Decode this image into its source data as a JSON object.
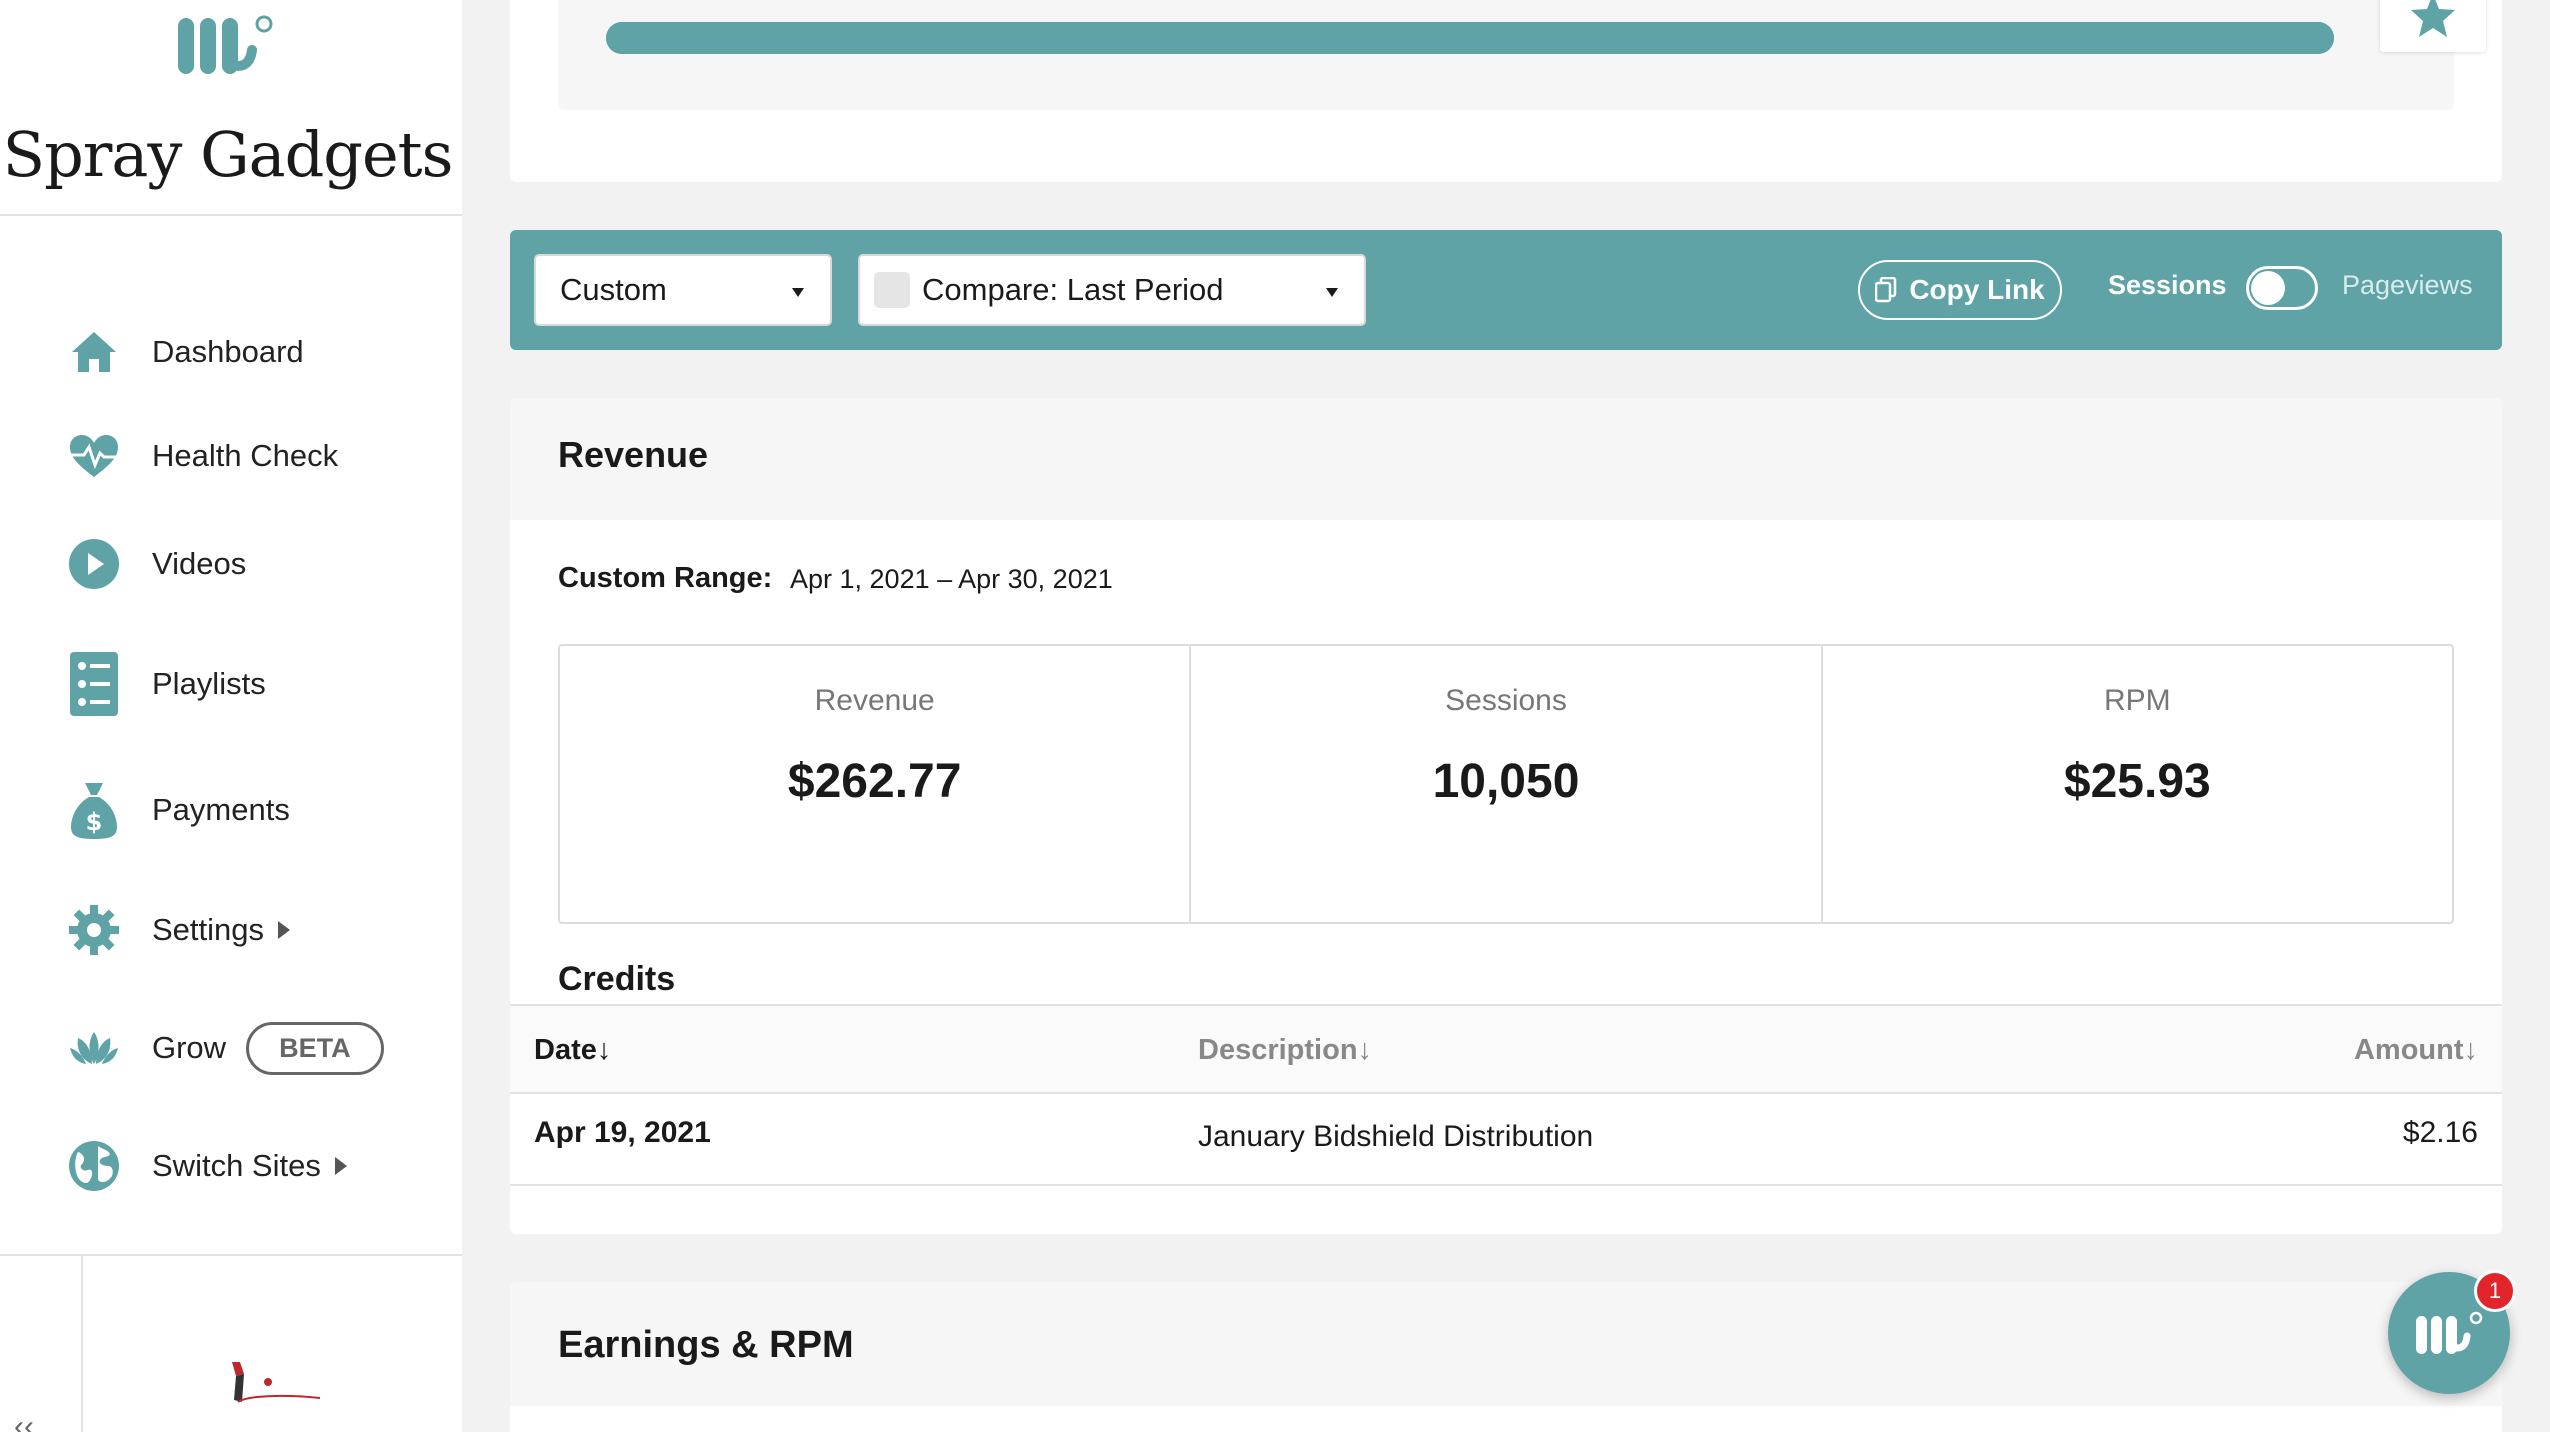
{
  "brand": {
    "site_name": "Spray Gadgets",
    "accent": "#5fa3a7"
  },
  "sidebar": {
    "items": [
      {
        "label": "Dashboard",
        "icon": "home-icon"
      },
      {
        "label": "Health Check",
        "icon": "heartbeat-icon"
      },
      {
        "label": "Videos",
        "icon": "play-circle-icon"
      },
      {
        "label": "Playlists",
        "icon": "list-icon"
      },
      {
        "label": "Payments",
        "icon": "money-bag-icon"
      },
      {
        "label": "Settings",
        "icon": "gear-icon",
        "has_submenu": true
      },
      {
        "label": "Grow",
        "icon": "lotus-icon",
        "badge": "BETA"
      },
      {
        "label": "Switch Sites",
        "icon": "globe-icon",
        "has_submenu": true
      }
    ]
  },
  "progress": {
    "fraction": 1.0
  },
  "filters": {
    "date_range": "Custom",
    "compare": "Compare: Last Period",
    "copy_link": "Copy Link",
    "toggle_left": "Sessions",
    "toggle_right": "Pageviews"
  },
  "revenue": {
    "title": "Revenue",
    "range_label": "Custom Range:",
    "range_value": "Apr 1, 2021 – Apr 30, 2021",
    "stats": [
      {
        "label": "Revenue",
        "value": "$262.77"
      },
      {
        "label": "Sessions",
        "value": "10,050"
      },
      {
        "label": "RPM",
        "value": "$25.93"
      }
    ],
    "credits": {
      "title": "Credits",
      "columns": [
        "Date",
        "Description",
        "Amount"
      ],
      "rows": [
        {
          "date": "Apr 19, 2021",
          "description": "January Bidshield Distribution",
          "amount": "$2.16"
        }
      ]
    }
  },
  "earnings": {
    "title": "Earnings & RPM"
  },
  "chat": {
    "badge_count": "1"
  }
}
